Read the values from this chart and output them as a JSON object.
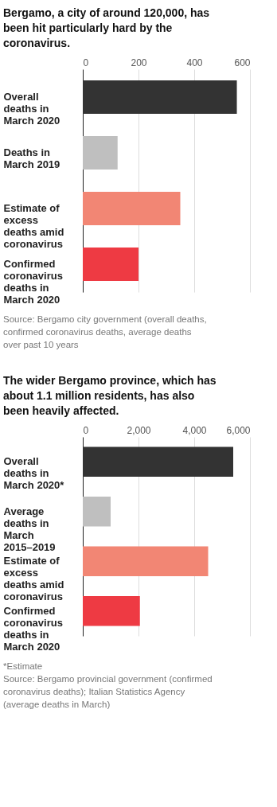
{
  "chart_data": [
    {
      "type": "bar",
      "orientation": "horizontal",
      "title": "Bergamo, a city of around 120,000, has been hit particularly hard by the coronavirus.",
      "categories": [
        "Overall deaths in March 2020",
        "Deaths in March 2019",
        "Estimate of excess deaths amid coronavirus",
        "Confirmed coronavirus deaths in March 2020"
      ],
      "values": [
        553,
        125,
        350,
        200
      ],
      "colors": [
        "#333333",
        "#bfbfbf",
        "#f28674",
        "#ee3a43"
      ],
      "xlim": [
        0,
        600
      ],
      "xticks": [
        0,
        200,
        400,
        600
      ],
      "grid": "x",
      "annotations": [
        "Source: Bergamo city government (overall deaths, confirmed coronavirus deaths, average deaths over past 10 years"
      ]
    },
    {
      "type": "bar",
      "orientation": "horizontal",
      "title": "The wider Bergamo province, which has about 1.1 million residents, has also been heavily affected.",
      "categories": [
        "Overall deaths in March 2020*",
        "Average deaths in March 2015–2019",
        "Estimate of excess deaths amid coronavirus",
        "Confirmed coronavirus deaths in March 2020"
      ],
      "values": [
        5400,
        1000,
        4500,
        2050
      ],
      "colors": [
        "#333333",
        "#bfbfbf",
        "#f28674",
        "#ee3a43"
      ],
      "xlim": [
        0,
        6000
      ],
      "xticks": [
        0,
        {
          "value": 2000,
          "label": "2,000"
        },
        {
          "value": 4000,
          "label": "4,000"
        },
        {
          "value": 6000,
          "label": "6,000"
        }
      ],
      "grid": "x",
      "annotations": [
        "*Estimate",
        "Source: Bergamo provincial government (confirmed coronavirus deaths); Italian Statistics Agency (average deaths in March)"
      ]
    }
  ]
}
